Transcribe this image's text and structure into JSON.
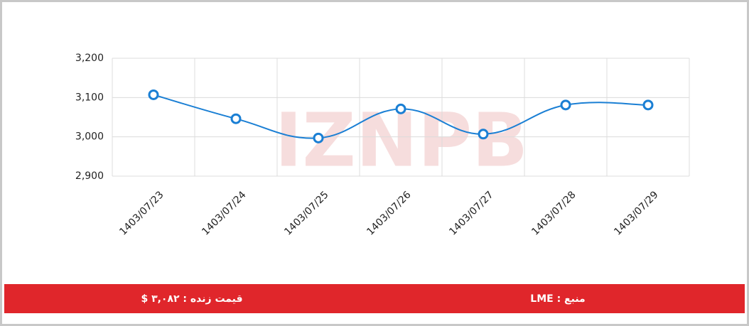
{
  "chart_data": {
    "type": "line",
    "watermark": "IZNPB",
    "categories": [
      "1403/07/23",
      "1403/07/24",
      "1403/07/25",
      "1403/07/26",
      "1403/07/27",
      "1403/07/28",
      "1403/07/29"
    ],
    "values": [
      3107,
      3046,
      2997,
      3071,
      3007,
      3081,
      3081
    ],
    "color": "#1a7fd4",
    "ylim": [
      2900,
      3200
    ],
    "yticks": [
      {
        "value": 2900,
        "label": "2,900"
      },
      {
        "value": 3000,
        "label": "3,000"
      },
      {
        "value": 3100,
        "label": "3,100"
      },
      {
        "value": 3200,
        "label": "3,200"
      }
    ],
    "grid": true
  },
  "footer": {
    "price": "قیمت زنده : ۳,۰۸۲ $",
    "source": "منبع : LME"
  }
}
